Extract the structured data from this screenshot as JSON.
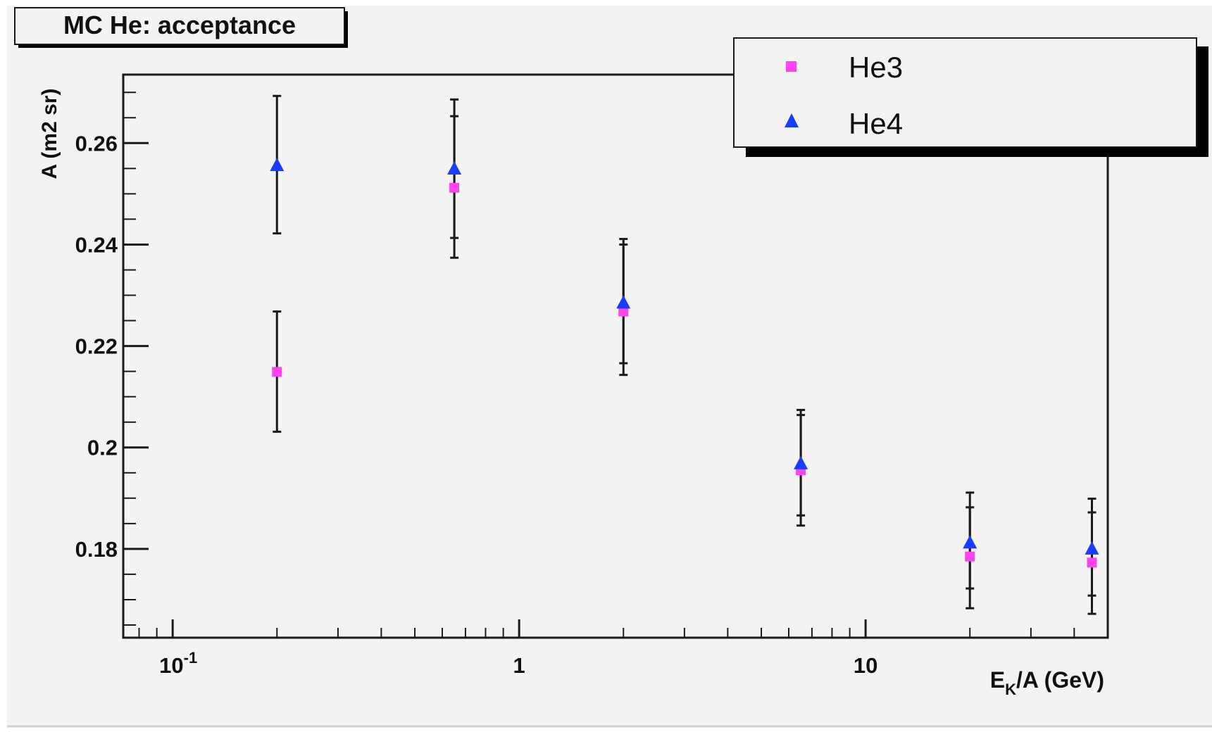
{
  "chart_data": {
    "type": "scatter",
    "title": "MC He: acceptance",
    "xlabel": "E",
    "xlabel_sub": "K",
    "xlabel_suffix": "/A (GeV)",
    "ylabel": "A (m2 sr)",
    "x_scale": "log",
    "xlim": [
      0.072,
      50
    ],
    "ylim": [
      0.1625,
      0.2735
    ],
    "x_ticks": [
      {
        "value": 0.1,
        "base": "10",
        "exp": "-1"
      },
      {
        "value": 1,
        "base": "1",
        "exp": ""
      },
      {
        "value": 10,
        "base": "10",
        "exp": ""
      }
    ],
    "y_ticks": [
      {
        "value": 0.18,
        "label": "0.18"
      },
      {
        "value": 0.2,
        "label": "0.2"
      },
      {
        "value": 0.22,
        "label": "0.22"
      },
      {
        "value": 0.24,
        "label": "0.24"
      },
      {
        "value": 0.26,
        "label": "0.26"
      }
    ],
    "grid": false,
    "legend_position": "top-right",
    "series": [
      {
        "name": "He3",
        "marker": "square",
        "color": "#ff44ee",
        "points": [
          {
            "x": 0.2,
            "y": 0.2149,
            "lo": 0.2031,
            "hi": 0.2268
          },
          {
            "x": 0.65,
            "y": 0.2512,
            "lo": 0.2413,
            "hi": 0.2653
          },
          {
            "x": 2.0,
            "y": 0.2268,
            "lo": 0.2166,
            "hi": 0.24
          },
          {
            "x": 6.5,
            "y": 0.1955,
            "lo": 0.1866,
            "hi": 0.2064
          },
          {
            "x": 20.0,
            "y": 0.1785,
            "lo": 0.1722,
            "hi": 0.1882
          },
          {
            "x": 45.0,
            "y": 0.1773,
            "lo": 0.1708,
            "hi": 0.1872
          }
        ]
      },
      {
        "name": "He4",
        "marker": "triangle",
        "color": "#1a3cff",
        "points": [
          {
            "x": 0.2,
            "y": 0.2556,
            "lo": 0.2422,
            "hi": 0.2693
          },
          {
            "x": 0.65,
            "y": 0.2549,
            "lo": 0.2374,
            "hi": 0.2686
          },
          {
            "x": 2.0,
            "y": 0.2285,
            "lo": 0.2143,
            "hi": 0.2411
          },
          {
            "x": 6.5,
            "y": 0.1968,
            "lo": 0.1846,
            "hi": 0.2074
          },
          {
            "x": 20.0,
            "y": 0.1812,
            "lo": 0.1683,
            "hi": 0.1911
          },
          {
            "x": 45.0,
            "y": 0.18,
            "lo": 0.1672,
            "hi": 0.1899
          }
        ]
      }
    ]
  }
}
